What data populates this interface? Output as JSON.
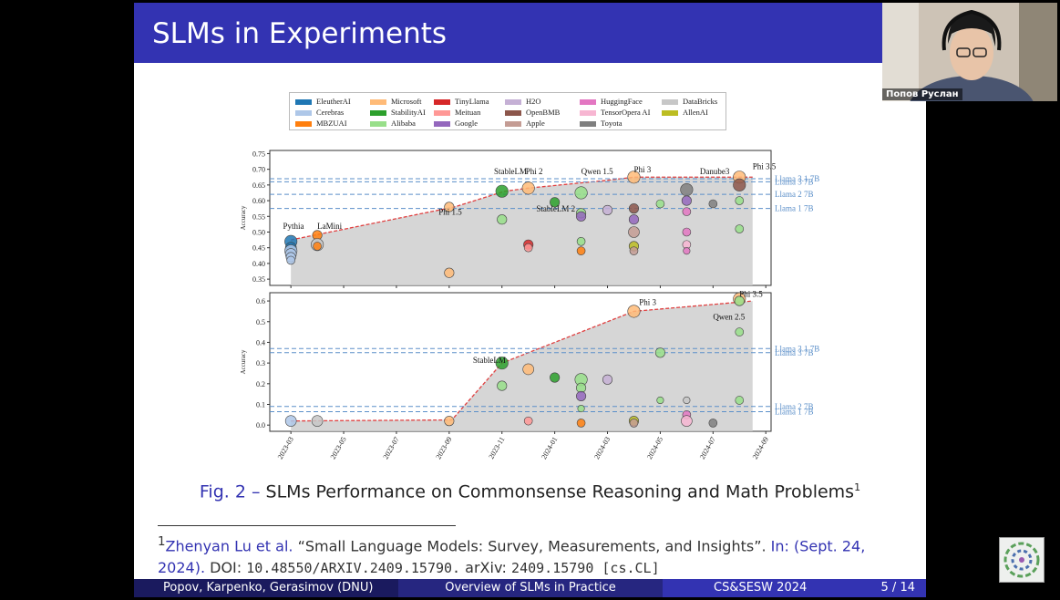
{
  "slide": {
    "title": "SLMs in Experiments",
    "caption_label": "Fig. 2 –",
    "caption_text": "SLMs Performance on Commonsense Reasoning and Math Problems",
    "caption_note": "1",
    "footnote": {
      "num": "1",
      "authors": "Zhenyan Lu et al.",
      "title": "“Small Language Models: Survey, Measurements, and Insights”.",
      "in_date": "In: (Sept. 24, 2024).",
      "doi_prefix": "DOI:",
      "doi": "10.48550/ARXIV.2409.15790.",
      "arxiv_prefix": "arXiv:",
      "arxiv": "2409.15790 [cs.CL]"
    },
    "footer": {
      "authors": "Popov, Karpenko, Gerasimov  (DNU)",
      "talk": "Overview of SLMs in Practice",
      "conference": "CS&SESW 2024",
      "page": "5 / 14"
    }
  },
  "webcam": {
    "name": "Попов Руслан"
  },
  "legend": [
    {
      "name": "EleutherAI",
      "color": "#1f77b4"
    },
    {
      "name": "Cerebras",
      "color": "#aec7e8"
    },
    {
      "name": "MBZUAI",
      "color": "#ff7f0e"
    },
    {
      "name": "Microsoft",
      "color": "#ffbb78"
    },
    {
      "name": "StabilityAI",
      "color": "#2ca02c"
    },
    {
      "name": "Alibaba",
      "color": "#98df8a"
    },
    {
      "name": "TinyLlama",
      "color": "#d62728"
    },
    {
      "name": "Meituan",
      "color": "#ff9896"
    },
    {
      "name": "Google",
      "color": "#9467bd"
    },
    {
      "name": "H2O",
      "color": "#c5b0d5"
    },
    {
      "name": "OpenBMB",
      "color": "#8c564b"
    },
    {
      "name": "Apple",
      "color": "#c49c94"
    },
    {
      "name": "HuggingFace",
      "color": "#e377c2"
    },
    {
      "name": "TensorOpera AI",
      "color": "#f7b6d2"
    },
    {
      "name": "Toyota",
      "color": "#7f7f7f"
    },
    {
      "name": "DataBricks",
      "color": "#c7c7c7"
    },
    {
      "name": "AllenAI",
      "color": "#bcbd22"
    }
  ],
  "chart_data": [
    {
      "type": "scatter",
      "title": "Commonsense Reasoning",
      "ylabel": "Accuracy",
      "ylim": [
        0.33,
        0.76
      ],
      "yticks": [
        0.35,
        0.4,
        0.45,
        0.5,
        0.55,
        0.6,
        0.65,
        0.7,
        0.75
      ],
      "ytick_labels": [
        "0.35",
        "0.40",
        "0.45",
        "0.50",
        "0.55",
        "0.60",
        "0.65",
        "0.70",
        "0.75"
      ],
      "baselines": [
        {
          "name": "Llama 3.1 7B",
          "value": 0.67
        },
        {
          "name": "Llama 3 7B",
          "value": 0.66
        },
        {
          "name": "Llama 2 7B",
          "value": 0.62
        },
        {
          "name": "Llama 1 7B",
          "value": 0.575
        }
      ],
      "frontier": [
        {
          "month": 0,
          "value": 0.475
        },
        {
          "month": 6.2,
          "value": 0.58
        },
        {
          "month": 8.1,
          "value": 0.63
        },
        {
          "month": 9.0,
          "value": 0.64
        },
        {
          "month": 12.0,
          "value": 0.665
        },
        {
          "month": 13.0,
          "value": 0.675
        },
        {
          "month": 17.5,
          "value": 0.675
        }
      ],
      "annotations": [
        {
          "text": "Pythia",
          "month": -0.3,
          "value": 0.51
        },
        {
          "text": "LaMini",
          "month": 1.0,
          "value": 0.51
        },
        {
          "text": "Phi 1.5",
          "month": 5.6,
          "value": 0.555
        },
        {
          "text": "StableLM",
          "month": 7.7,
          "value": 0.685
        },
        {
          "text": "Phi 2",
          "month": 8.9,
          "value": 0.685
        },
        {
          "text": "Qwen 1.5",
          "month": 11.0,
          "value": 0.685
        },
        {
          "text": "Phi 3",
          "month": 13.0,
          "value": 0.69
        },
        {
          "text": "StableLM 2",
          "month": 9.3,
          "value": 0.565
        },
        {
          "text": "Danube3",
          "month": 15.5,
          "value": 0.685
        },
        {
          "text": "Phi 3.5",
          "month": 17.5,
          "value": 0.7
        }
      ],
      "points": [
        {
          "month": 0,
          "value": 0.47,
          "org": "EleutherAI",
          "size": 9
        },
        {
          "month": 0,
          "value": 0.45,
          "org": "EleutherAI",
          "size": 8
        },
        {
          "month": 0,
          "value": 0.44,
          "org": "Cerebras",
          "size": 9
        },
        {
          "month": 0,
          "value": 0.43,
          "org": "Cerebras",
          "size": 8
        },
        {
          "month": 0,
          "value": 0.42,
          "org": "Cerebras",
          "size": 7
        },
        {
          "month": 0,
          "value": 0.41,
          "org": "Cerebras",
          "size": 6
        },
        {
          "month": 1,
          "value": 0.49,
          "org": "MBZUAI",
          "size": 7
        },
        {
          "month": 1,
          "value": 0.46,
          "org": "DataBricks",
          "size": 9
        },
        {
          "month": 1,
          "value": 0.455,
          "org": "MBZUAI",
          "size": 6
        },
        {
          "month": 6,
          "value": 0.58,
          "org": "Microsoft",
          "size": 7
        },
        {
          "month": 6,
          "value": 0.37,
          "org": "Microsoft",
          "size": 7
        },
        {
          "month": 8,
          "value": 0.63,
          "org": "StabilityAI",
          "size": 9
        },
        {
          "month": 8,
          "value": 0.54,
          "org": "Alibaba",
          "size": 7
        },
        {
          "month": 9,
          "value": 0.64,
          "org": "Microsoft",
          "size": 9
        },
        {
          "month": 9,
          "value": 0.46,
          "org": "TinyLlama",
          "size": 7
        },
        {
          "month": 9,
          "value": 0.45,
          "org": "Meituan",
          "size": 6
        },
        {
          "month": 10,
          "value": 0.595,
          "org": "StabilityAI",
          "size": 7
        },
        {
          "month": 11,
          "value": 0.625,
          "org": "Alibaba",
          "size": 9
        },
        {
          "month": 11,
          "value": 0.56,
          "org": "Alibaba",
          "size": 7
        },
        {
          "month": 11,
          "value": 0.55,
          "org": "Google",
          "size": 7
        },
        {
          "month": 11,
          "value": 0.47,
          "org": "Alibaba",
          "size": 6
        },
        {
          "month": 11,
          "value": 0.44,
          "org": "MBZUAI",
          "size": 6
        },
        {
          "month": 12,
          "value": 0.57,
          "org": "H2O",
          "size": 7
        },
        {
          "month": 13,
          "value": 0.675,
          "org": "Microsoft",
          "size": 9
        },
        {
          "month": 13,
          "value": 0.575,
          "org": "OpenBMB",
          "size": 7
        },
        {
          "month": 13,
          "value": 0.54,
          "org": "Google",
          "size": 7
        },
        {
          "month": 13,
          "value": 0.5,
          "org": "Apple",
          "size": 8
        },
        {
          "month": 13,
          "value": 0.455,
          "org": "AllenAI",
          "size": 7
        },
        {
          "month": 13,
          "value": 0.44,
          "org": "Apple",
          "size": 6
        },
        {
          "month": 14,
          "value": 0.59,
          "org": "Alibaba",
          "size": 6
        },
        {
          "month": 15,
          "value": 0.635,
          "org": "Toyota",
          "size": 9
        },
        {
          "month": 15,
          "value": 0.6,
          "org": "Google",
          "size": 7
        },
        {
          "month": 15,
          "value": 0.565,
          "org": "HuggingFace",
          "size": 6
        },
        {
          "month": 15,
          "value": 0.5,
          "org": "HuggingFace",
          "size": 6
        },
        {
          "month": 15,
          "value": 0.46,
          "org": "TensorOpera AI",
          "size": 6
        },
        {
          "month": 15,
          "value": 0.44,
          "org": "HuggingFace",
          "size": 5
        },
        {
          "month": 16,
          "value": 0.59,
          "org": "Toyota",
          "size": 6
        },
        {
          "month": 17,
          "value": 0.675,
          "org": "Microsoft",
          "size": 9
        },
        {
          "month": 17,
          "value": 0.65,
          "org": "OpenBMB",
          "size": 9
        },
        {
          "month": 17,
          "value": 0.6,
          "org": "Alibaba",
          "size": 6
        },
        {
          "month": 17,
          "value": 0.51,
          "org": "Alibaba",
          "size": 6
        }
      ]
    },
    {
      "type": "scatter",
      "title": "Math Problems",
      "ylabel": "Accuracy",
      "ylim": [
        -0.03,
        0.64
      ],
      "yticks": [
        0.0,
        0.1,
        0.2,
        0.3,
        0.4,
        0.5,
        0.6
      ],
      "ytick_labels": [
        "0.0",
        "0.1",
        "0.2",
        "0.3",
        "0.4",
        "0.5",
        "0.6"
      ],
      "xticks": [
        "2023-03",
        "2023-05",
        "2023-07",
        "2023-09",
        "2023-11",
        "2024-01",
        "2024-03",
        "2024-05",
        "2024-07",
        "2024-09"
      ],
      "xlim": [
        -0.8,
        18.2
      ],
      "baselines": [
        {
          "name": "Llama 3.1 7B",
          "value": 0.37
        },
        {
          "name": "Llama 3 7B",
          "value": 0.35
        },
        {
          "name": "Llama 2 7B",
          "value": 0.09
        },
        {
          "name": "Llama 1 7B",
          "value": 0.065
        }
      ],
      "frontier": [
        {
          "month": 0,
          "value": 0.02
        },
        {
          "month": 6.1,
          "value": 0.025
        },
        {
          "month": 8.0,
          "value": 0.3
        },
        {
          "month": 13.0,
          "value": 0.55
        },
        {
          "month": 17.5,
          "value": 0.6
        }
      ],
      "annotations": [
        {
          "text": "StableLM",
          "month": 6.9,
          "value": 0.3
        },
        {
          "text": "Phi 3",
          "month": 13.2,
          "value": 0.58
        },
        {
          "text": "Phi 3.5",
          "month": 17.0,
          "value": 0.62
        },
        {
          "text": "Qwen 2.5",
          "month": 16.0,
          "value": 0.51
        }
      ],
      "points": [
        {
          "month": 0,
          "value": 0.02,
          "org": "Cerebras",
          "size": 8
        },
        {
          "month": 1,
          "value": 0.02,
          "org": "DataBricks",
          "size": 8
        },
        {
          "month": 6,
          "value": 0.02,
          "org": "Microsoft",
          "size": 7
        },
        {
          "month": 8,
          "value": 0.3,
          "org": "StabilityAI",
          "size": 9
        },
        {
          "month": 8,
          "value": 0.19,
          "org": "Alibaba",
          "size": 7
        },
        {
          "month": 9,
          "value": 0.27,
          "org": "Microsoft",
          "size": 8
        },
        {
          "month": 9,
          "value": 0.02,
          "org": "Meituan",
          "size": 6
        },
        {
          "month": 10,
          "value": 0.23,
          "org": "StabilityAI",
          "size": 7
        },
        {
          "month": 11,
          "value": 0.22,
          "org": "Alibaba",
          "size": 9
        },
        {
          "month": 11,
          "value": 0.18,
          "org": "Alibaba",
          "size": 7
        },
        {
          "month": 11,
          "value": 0.14,
          "org": "Google",
          "size": 7
        },
        {
          "month": 11,
          "value": 0.08,
          "org": "Alibaba",
          "size": 5
        },
        {
          "month": 11,
          "value": 0.01,
          "org": "MBZUAI",
          "size": 6
        },
        {
          "month": 12,
          "value": 0.22,
          "org": "H2O",
          "size": 7
        },
        {
          "month": 13,
          "value": 0.55,
          "org": "Microsoft",
          "size": 9
        },
        {
          "month": 13,
          "value": 0.02,
          "org": "AllenAI",
          "size": 7
        },
        {
          "month": 13,
          "value": 0.01,
          "org": "Apple",
          "size": 6
        },
        {
          "month": 14,
          "value": 0.35,
          "org": "Alibaba",
          "size": 7
        },
        {
          "month": 14,
          "value": 0.12,
          "org": "Alibaba",
          "size": 5
        },
        {
          "month": 15,
          "value": 0.12,
          "org": "DataBricks",
          "size": 5
        },
        {
          "month": 15,
          "value": 0.05,
          "org": "HuggingFace",
          "size": 6
        },
        {
          "month": 15,
          "value": 0.02,
          "org": "TensorOpera AI",
          "size": 8
        },
        {
          "month": 16,
          "value": 0.01,
          "org": "Toyota",
          "size": 6
        },
        {
          "month": 17,
          "value": 0.61,
          "org": "Microsoft",
          "size": 9
        },
        {
          "month": 17,
          "value": 0.6,
          "org": "Alibaba",
          "size": 7
        },
        {
          "month": 17,
          "value": 0.45,
          "org": "Alibaba",
          "size": 6
        },
        {
          "month": 17,
          "value": 0.12,
          "org": "Alibaba",
          "size": 6
        }
      ]
    }
  ]
}
